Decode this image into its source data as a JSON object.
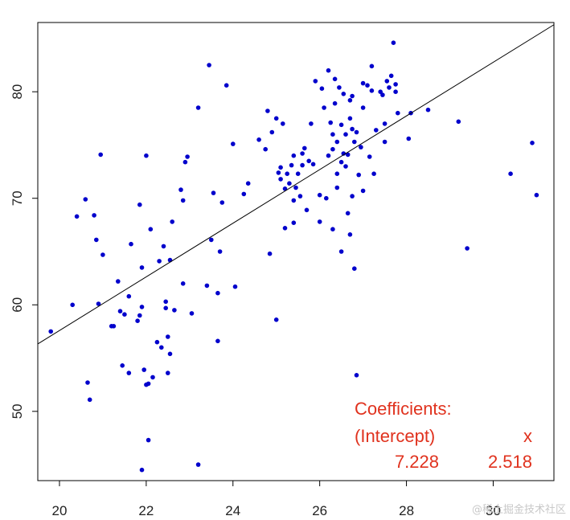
{
  "chart_data": {
    "type": "scatter",
    "title": "",
    "xlabel": "",
    "ylabel": "",
    "xlim": [
      19.5,
      31.4
    ],
    "ylim": [
      43.5,
      86.5
    ],
    "x_ticks": [
      "20",
      "22",
      "24",
      "26",
      "28",
      "30"
    ],
    "y_ticks": [
      "50",
      "60",
      "70",
      "80"
    ],
    "grid": false,
    "legend": "none",
    "point_color": "#0000cc",
    "line_color": "#000000",
    "regression_line": {
      "intercept": 7.228,
      "slope": 2.518
    },
    "points": [
      [
        19.8,
        57.5
      ],
      [
        20.3,
        60.0
      ],
      [
        20.4,
        68.3
      ],
      [
        20.6,
        69.9
      ],
      [
        20.65,
        52.7
      ],
      [
        20.7,
        51.1
      ],
      [
        20.8,
        68.4
      ],
      [
        20.85,
        66.1
      ],
      [
        20.9,
        60.1
      ],
      [
        20.95,
        74.1
      ],
      [
        21.0,
        64.7
      ],
      [
        21.2,
        58.0
      ],
      [
        21.25,
        58.0
      ],
      [
        21.35,
        62.2
      ],
      [
        21.4,
        59.4
      ],
      [
        21.45,
        54.3
      ],
      [
        21.5,
        59.1
      ],
      [
        21.6,
        60.8
      ],
      [
        21.6,
        53.6
      ],
      [
        21.65,
        65.7
      ],
      [
        21.8,
        58.5
      ],
      [
        21.85,
        69.4
      ],
      [
        21.85,
        59.0
      ],
      [
        21.9,
        59.8
      ],
      [
        21.9,
        44.5
      ],
      [
        21.9,
        63.5
      ],
      [
        21.95,
        53.9
      ],
      [
        22.0,
        52.5
      ],
      [
        22.0,
        74.0
      ],
      [
        22.05,
        52.6
      ],
      [
        22.05,
        47.3
      ],
      [
        22.1,
        67.1
      ],
      [
        22.15,
        53.2
      ],
      [
        22.25,
        56.5
      ],
      [
        22.3,
        64.1
      ],
      [
        22.35,
        56.0
      ],
      [
        22.4,
        65.5
      ],
      [
        22.45,
        60.3
      ],
      [
        22.45,
        59.7
      ],
      [
        22.5,
        53.6
      ],
      [
        22.5,
        57.0
      ],
      [
        22.55,
        55.4
      ],
      [
        22.55,
        64.2
      ],
      [
        22.6,
        67.8
      ],
      [
        22.65,
        59.5
      ],
      [
        22.8,
        70.8
      ],
      [
        22.85,
        62.0
      ],
      [
        22.85,
        69.8
      ],
      [
        22.9,
        73.4
      ],
      [
        22.95,
        73.9
      ],
      [
        23.05,
        59.2
      ],
      [
        23.2,
        78.5
      ],
      [
        23.2,
        45.0
      ],
      [
        23.4,
        61.8
      ],
      [
        23.45,
        82.5
      ],
      [
        23.5,
        66.1
      ],
      [
        23.55,
        70.5
      ],
      [
        23.65,
        61.1
      ],
      [
        23.65,
        56.6
      ],
      [
        23.7,
        65.0
      ],
      [
        23.75,
        69.6
      ],
      [
        23.85,
        80.6
      ],
      [
        24.0,
        75.1
      ],
      [
        24.05,
        61.7
      ],
      [
        24.25,
        70.4
      ],
      [
        24.35,
        71.4
      ],
      [
        24.6,
        75.5
      ],
      [
        24.75,
        74.6
      ],
      [
        24.8,
        78.2
      ],
      [
        24.85,
        64.8
      ],
      [
        24.9,
        76.2
      ],
      [
        25.0,
        77.5
      ],
      [
        25.0,
        58.6
      ],
      [
        25.05,
        72.4
      ],
      [
        25.1,
        72.9
      ],
      [
        25.1,
        71.8
      ],
      [
        25.15,
        77.0
      ],
      [
        25.2,
        70.9
      ],
      [
        25.2,
        67.2
      ],
      [
        25.25,
        72.3
      ],
      [
        25.3,
        71.4
      ],
      [
        25.35,
        73.1
      ],
      [
        25.4,
        74.0
      ],
      [
        25.4,
        69.8
      ],
      [
        25.4,
        67.7
      ],
      [
        25.45,
        71.0
      ],
      [
        25.5,
        72.3
      ],
      [
        25.55,
        70.2
      ],
      [
        25.6,
        74.2
      ],
      [
        25.6,
        73.1
      ],
      [
        25.65,
        74.7
      ],
      [
        25.7,
        68.9
      ],
      [
        25.75,
        73.5
      ],
      [
        25.8,
        77.0
      ],
      [
        25.85,
        73.2
      ],
      [
        25.9,
        81.0
      ],
      [
        26.0,
        70.3
      ],
      [
        26.0,
        67.8
      ],
      [
        26.05,
        80.3
      ],
      [
        26.1,
        78.5
      ],
      [
        26.15,
        70.0
      ],
      [
        26.2,
        74.0
      ],
      [
        26.2,
        82.0
      ],
      [
        26.25,
        77.1
      ],
      [
        26.3,
        76.0
      ],
      [
        26.3,
        74.6
      ],
      [
        26.3,
        67.1
      ],
      [
        26.35,
        81.2
      ],
      [
        26.35,
        78.9
      ],
      [
        26.4,
        75.3
      ],
      [
        26.4,
        72.3
      ],
      [
        26.4,
        71.0
      ],
      [
        26.45,
        80.4
      ],
      [
        26.5,
        76.9
      ],
      [
        26.5,
        73.4
      ],
      [
        26.5,
        65.0
      ],
      [
        26.55,
        79.8
      ],
      [
        26.55,
        74.2
      ],
      [
        26.6,
        76.0
      ],
      [
        26.6,
        73.0
      ],
      [
        26.65,
        74.1
      ],
      [
        26.65,
        68.6
      ],
      [
        26.7,
        79.2
      ],
      [
        26.7,
        77.5
      ],
      [
        26.7,
        66.6
      ],
      [
        26.75,
        79.6
      ],
      [
        26.75,
        76.5
      ],
      [
        26.75,
        70.2
      ],
      [
        26.8,
        75.3
      ],
      [
        26.8,
        63.4
      ],
      [
        26.85,
        53.4
      ],
      [
        26.85,
        76.2
      ],
      [
        26.9,
        72.2
      ],
      [
        26.95,
        74.8
      ],
      [
        27.0,
        80.8
      ],
      [
        27.0,
        78.5
      ],
      [
        27.0,
        70.7
      ],
      [
        27.1,
        80.6
      ],
      [
        27.15,
        73.9
      ],
      [
        27.2,
        82.4
      ],
      [
        27.2,
        80.1
      ],
      [
        27.25,
        72.3
      ],
      [
        27.3,
        76.4
      ],
      [
        27.4,
        80.0
      ],
      [
        27.45,
        79.7
      ],
      [
        27.5,
        77.0
      ],
      [
        27.5,
        75.3
      ],
      [
        27.55,
        81.0
      ],
      [
        27.6,
        80.4
      ],
      [
        27.65,
        81.5
      ],
      [
        27.7,
        84.6
      ],
      [
        27.75,
        80.7
      ],
      [
        27.75,
        80.0
      ],
      [
        27.8,
        78.0
      ],
      [
        28.05,
        75.6
      ],
      [
        28.1,
        78.0
      ],
      [
        28.5,
        78.3
      ],
      [
        29.2,
        77.2
      ],
      [
        29.4,
        65.3
      ],
      [
        30.4,
        72.3
      ],
      [
        30.9,
        75.2
      ],
      [
        31.0,
        70.3
      ]
    ],
    "annotation": {
      "line1": "Coefficients:",
      "label_intercept": "(Intercept)",
      "label_x": "x",
      "value_intercept": "7.228",
      "value_x": "2.518",
      "color": "#e0321e"
    }
  },
  "watermark": {
    "text": "@稀土掘金技术社区",
    "color": "#c8c8c8"
  }
}
